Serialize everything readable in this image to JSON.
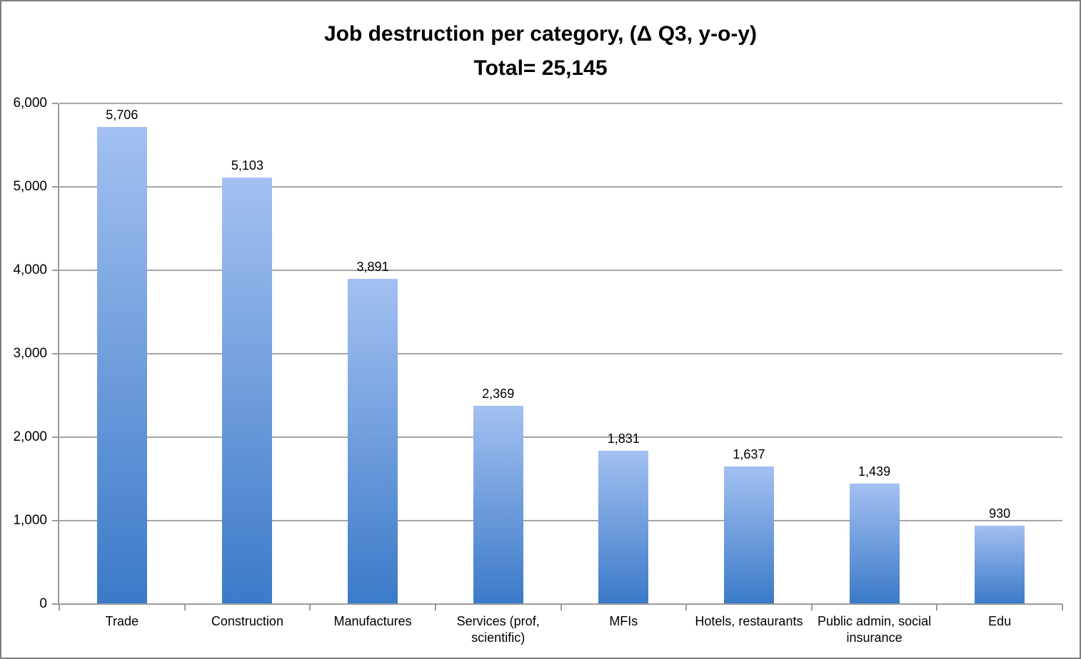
{
  "chart_data": {
    "type": "bar",
    "title": "Job destruction per category, (Δ Q3, y-o-y)",
    "subtitle": "Total= 25,145",
    "categories": [
      "Trade",
      "Construction",
      "Manufactures",
      "Services (prof, scientific)",
      "MFIs",
      "Hotels, restaurants",
      "Public admin, social insurance",
      "Edu"
    ],
    "values": [
      5706,
      5103,
      3891,
      2369,
      1831,
      1637,
      1439,
      930
    ],
    "data_labels": [
      "5,706",
      "5,103",
      "3,891",
      "2,369",
      "1,831",
      "1,637",
      "1,439",
      "930"
    ],
    "y_tick_values": [
      0,
      1000,
      2000,
      3000,
      4000,
      5000,
      6000
    ],
    "y_tick_labels": [
      "0",
      "1,000",
      "2,000",
      "3,000",
      "4,000",
      "5,000",
      "6,000"
    ],
    "xlabel": "",
    "ylabel": "",
    "ylim": [
      0,
      6000
    ],
    "grid": true,
    "legend": "none",
    "style": {
      "bar_gradient_top": "#a3c0f1",
      "bar_gradient_bottom": "#3b7ac8",
      "gridline_color": "#a6a6a6",
      "axis_color": "#9b9b9b",
      "text_color": "#000000",
      "frame_border_color": "#7f7f7f",
      "background": "#ffffff"
    }
  }
}
